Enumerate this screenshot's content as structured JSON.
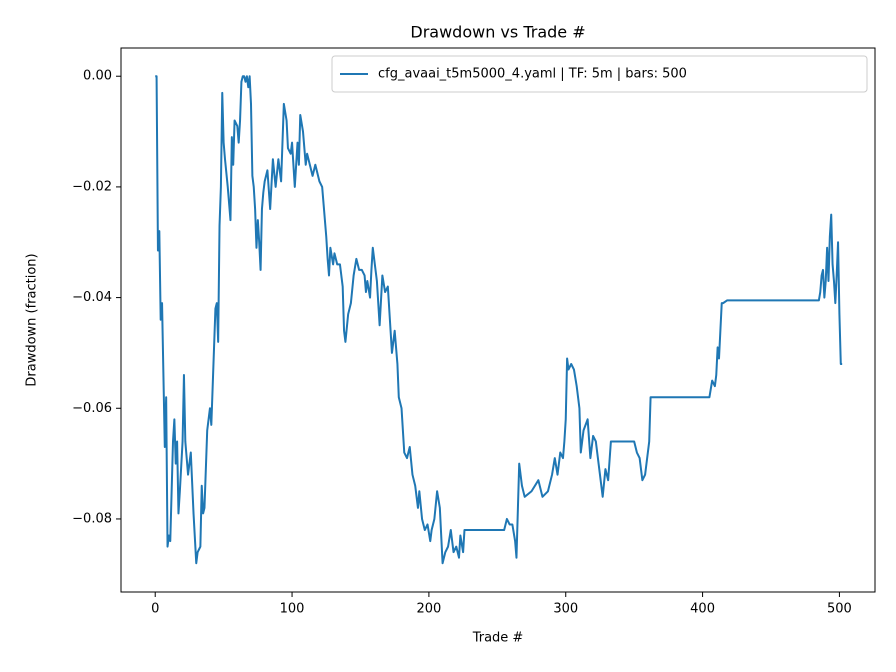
{
  "chart_data": {
    "type": "line",
    "title": "Drawdown vs Trade #",
    "xlabel": "Trade #",
    "ylabel": "Drawdown (fraction)",
    "x": [
      0,
      1,
      2,
      3,
      4,
      5,
      7,
      8,
      9,
      10,
      11,
      13,
      14,
      15,
      16,
      17,
      18,
      20,
      21,
      22,
      24,
      26,
      28,
      30,
      31,
      33,
      34,
      35,
      36,
      38,
      40,
      41,
      43,
      44,
      45,
      46,
      47,
      48,
      49,
      50,
      51,
      53,
      55,
      56,
      57,
      58,
      60,
      61,
      62,
      63,
      64,
      65,
      66,
      67,
      68,
      69,
      70,
      71,
      72,
      73,
      74,
      75,
      76,
      77,
      78,
      79,
      80,
      82,
      84,
      86,
      88,
      90,
      92,
      94,
      96,
      97,
      99,
      100,
      102,
      104,
      105,
      106,
      108,
      110,
      111,
      113,
      115,
      117,
      118,
      120,
      122,
      123,
      125,
      126,
      127,
      128,
      130,
      131,
      133,
      135,
      137,
      138,
      139,
      141,
      143,
      145,
      147,
      149,
      151,
      153,
      154,
      155,
      157,
      158,
      159,
      160,
      162,
      164,
      166,
      168,
      170,
      172,
      173,
      175,
      177,
      178,
      180,
      182,
      184,
      186,
      188,
      190,
      192,
      193,
      195,
      197,
      199,
      201,
      202,
      204,
      206,
      208,
      210,
      212,
      214,
      216,
      218,
      220,
      222,
      223,
      225,
      226,
      240,
      255,
      257,
      259,
      261,
      263,
      264,
      266,
      268,
      270,
      275,
      280,
      283,
      287,
      290,
      292,
      294,
      296,
      298,
      299,
      300,
      301,
      302,
      304,
      306,
      308,
      310,
      311,
      313,
      316,
      318,
      320,
      322,
      325,
      327,
      329,
      331,
      333,
      340,
      350,
      352,
      354,
      356,
      358,
      361,
      362,
      380,
      395,
      405,
      407,
      409,
      410,
      411,
      412,
      413,
      414,
      415,
      418,
      440,
      470,
      485,
      486,
      487,
      488,
      489,
      490,
      491,
      492,
      493,
      494,
      495,
      496,
      497,
      498,
      499,
      500,
      501,
      502
    ],
    "series": [
      {
        "name": "cfg_avaai_t5m5000_4.yaml | TF: 5m | bars: 500",
        "color": "#1f77b4",
        "values": [
          0,
          0,
          -0.0315,
          -0.028,
          -0.044,
          -0.041,
          -0.067,
          -0.058,
          -0.085,
          -0.083,
          -0.084,
          -0.066,
          -0.062,
          -0.07,
          -0.066,
          -0.079,
          -0.075,
          -0.066,
          -0.054,
          -0.066,
          -0.072,
          -0.068,
          -0.079,
          -0.088,
          -0.086,
          -0.085,
          -0.074,
          -0.079,
          -0.078,
          -0.064,
          -0.06,
          -0.063,
          -0.049,
          -0.042,
          -0.041,
          -0.048,
          -0.027,
          -0.02,
          -0.003,
          -0.012,
          -0.015,
          -0.02,
          -0.026,
          -0.011,
          -0.016,
          -0.008,
          -0.009,
          -0.012,
          -0.008,
          -0.001,
          0,
          0,
          -0.001,
          0,
          -0.002,
          0,
          -0.005,
          -0.018,
          -0.02,
          -0.024,
          -0.031,
          -0.026,
          -0.03,
          -0.035,
          -0.024,
          -0.021,
          -0.019,
          -0.017,
          -0.024,
          -0.015,
          -0.02,
          -0.015,
          -0.019,
          -0.005,
          -0.008,
          -0.013,
          -0.014,
          -0.012,
          -0.02,
          -0.012,
          -0.016,
          -0.007,
          -0.01,
          -0.016,
          -0.014,
          -0.016,
          -0.018,
          -0.016,
          -0.017,
          -0.019,
          -0.02,
          -0.023,
          -0.029,
          -0.033,
          -0.036,
          -0.031,
          -0.034,
          -0.032,
          -0.034,
          -0.034,
          -0.038,
          -0.046,
          -0.048,
          -0.043,
          -0.041,
          -0.036,
          -0.033,
          -0.035,
          -0.035,
          -0.036,
          -0.039,
          -0.037,
          -0.04,
          -0.035,
          -0.031,
          -0.033,
          -0.037,
          -0.045,
          -0.036,
          -0.039,
          -0.038,
          -0.046,
          -0.05,
          -0.046,
          -0.052,
          -0.058,
          -0.06,
          -0.068,
          -0.069,
          -0.067,
          -0.072,
          -0.074,
          -0.078,
          -0.075,
          -0.08,
          -0.082,
          -0.081,
          -0.084,
          -0.082,
          -0.08,
          -0.075,
          -0.078,
          -0.088,
          -0.086,
          -0.085,
          -0.082,
          -0.086,
          -0.085,
          -0.087,
          -0.083,
          -0.086,
          -0.082,
          -0.082,
          -0.082,
          -0.08,
          -0.081,
          -0.081,
          -0.084,
          -0.087,
          -0.07,
          -0.074,
          -0.076,
          -0.075,
          -0.073,
          -0.076,
          -0.075,
          -0.072,
          -0.069,
          -0.072,
          -0.068,
          -0.069,
          -0.066,
          -0.062,
          -0.051,
          -0.053,
          -0.052,
          -0.053,
          -0.056,
          -0.06,
          -0.068,
          -0.064,
          -0.062,
          -0.069,
          -0.065,
          -0.066,
          -0.072,
          -0.076,
          -0.071,
          -0.073,
          -0.066,
          -0.066,
          -0.066,
          -0.068,
          -0.069,
          -0.073,
          -0.072,
          -0.066,
          -0.058,
          -0.058,
          -0.058,
          -0.058,
          -0.055,
          -0.056,
          -0.054,
          -0.049,
          -0.051,
          -0.046,
          -0.041,
          -0.041,
          -0.0405,
          -0.0405,
          -0.0405,
          -0.0405,
          -0.039,
          -0.036,
          -0.035,
          -0.04,
          -0.037,
          -0.031,
          -0.037,
          -0.029,
          -0.025,
          -0.034,
          -0.037,
          -0.041,
          -0.036,
          -0.03,
          -0.043,
          -0.052,
          -0.052
        ]
      }
    ],
    "xlim": [
      -25,
      526
    ],
    "xticks": [
      0,
      100,
      200,
      300,
      400,
      500
    ],
    "ylim": [
      -0.0932,
      0.0051
    ],
    "yticks": [
      {
        "value": 0,
        "label": "0.00"
      },
      {
        "value": -0.02,
        "label": "−0.02"
      },
      {
        "value": -0.04,
        "label": "−0.04"
      },
      {
        "value": -0.06,
        "label": "−0.06"
      },
      {
        "value": -0.08,
        "label": "−0.08"
      }
    ],
    "grid": false,
    "legend": "upper right"
  }
}
